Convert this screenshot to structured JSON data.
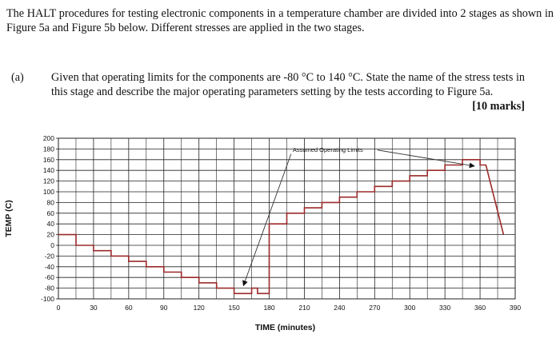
{
  "intro": {
    "text": "The HALT procedures for testing electronic components in a temperature chamber are divided into 2 stages as shown in Figure 5a and Figure 5b below. Different stresses are applied in the two stages."
  },
  "question": {
    "label": "(a)",
    "text": "Given that operating limits for the components are -80 °C to 140 °C. State the name of the stress tests in this stage and describe the major operating parameters setting by the tests according to Figure 5a.",
    "marks": "[10 marks]"
  },
  "colors": {
    "line": "#9b2a2a",
    "grid": "#222222",
    "arrow": "#333333"
  },
  "chart_data": {
    "type": "line",
    "title": "",
    "xlabel": "TIME (minutes)",
    "ylabel": "TEMP (C)",
    "xlim": [
      0,
      390
    ],
    "ylim": [
      -100,
      200
    ],
    "xticks": [
      0,
      30,
      60,
      90,
      120,
      150,
      180,
      210,
      240,
      270,
      300,
      330,
      360,
      390
    ],
    "yticks": [
      200,
      180,
      160,
      140,
      120,
      100,
      80,
      60,
      40,
      20,
      0,
      -20,
      -40,
      -60,
      -80,
      -100
    ],
    "grid": true,
    "series": [
      {
        "values_xy": [
          [
            0,
            20
          ],
          [
            15,
            20
          ],
          [
            15,
            0
          ],
          [
            30,
            0
          ],
          [
            30,
            -10
          ],
          [
            45,
            -10
          ],
          [
            45,
            -20
          ],
          [
            60,
            -20
          ],
          [
            60,
            -30
          ],
          [
            75,
            -30
          ],
          [
            75,
            -40
          ],
          [
            90,
            -40
          ],
          [
            90,
            -50
          ],
          [
            105,
            -50
          ],
          [
            105,
            -60
          ],
          [
            120,
            -60
          ],
          [
            120,
            -70
          ],
          [
            135,
            -70
          ],
          [
            135,
            -80
          ],
          [
            150,
            -80
          ],
          [
            150,
            -90
          ],
          [
            165,
            -90
          ],
          [
            165,
            -80
          ],
          [
            170,
            -80
          ],
          [
            170,
            -90
          ],
          [
            180,
            -90
          ],
          [
            180,
            40
          ],
          [
            195,
            40
          ],
          [
            195,
            60
          ],
          [
            210,
            60
          ],
          [
            210,
            70
          ],
          [
            225,
            70
          ],
          [
            225,
            80
          ],
          [
            240,
            80
          ],
          [
            240,
            90
          ],
          [
            255,
            90
          ],
          [
            255,
            100
          ],
          [
            270,
            100
          ],
          [
            270,
            110
          ],
          [
            285,
            110
          ],
          [
            285,
            120
          ],
          [
            300,
            120
          ],
          [
            300,
            130
          ],
          [
            315,
            130
          ],
          [
            315,
            140
          ],
          [
            330,
            140
          ],
          [
            330,
            150
          ],
          [
            345,
            150
          ],
          [
            345,
            160
          ],
          [
            360,
            160
          ],
          [
            360,
            150
          ],
          [
            365,
            150
          ],
          [
            380,
            20
          ]
        ]
      }
    ],
    "annotations": [
      {
        "text": "Assumed Operating Limits",
        "x": 200,
        "y": 175,
        "points_to": [
          [
            158,
            -75
          ],
          [
            355,
            148
          ]
        ]
      }
    ]
  }
}
